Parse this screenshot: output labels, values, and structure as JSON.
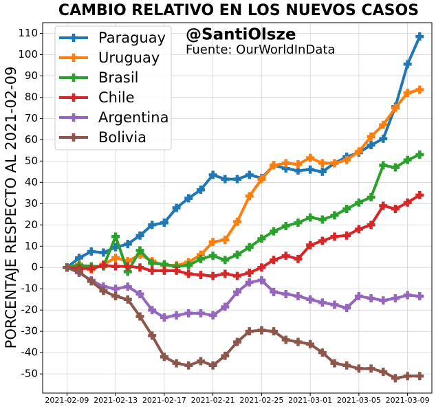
{
  "chart_data": {
    "type": "line",
    "title": "CAMBIO RELATIVO EN LOS NUEVOS CASOS",
    "annotations": [
      "@SantiOlsze",
      "Fuente: OurWorldInData"
    ],
    "ylabel": "PORCENTAJE RESPECTO AL 2021-02-09",
    "x": [
      "2021-02-09",
      "2021-02-10",
      "2021-02-11",
      "2021-02-12",
      "2021-02-13",
      "2021-02-14",
      "2021-02-15",
      "2021-02-16",
      "2021-02-17",
      "2021-02-18",
      "2021-02-19",
      "2021-02-20",
      "2021-02-21",
      "2021-02-22",
      "2021-02-23",
      "2021-02-24",
      "2021-02-25",
      "2021-02-26",
      "2021-02-27",
      "2021-02-28",
      "2021-03-01",
      "2021-03-02",
      "2021-03-03",
      "2021-03-04",
      "2021-03-05",
      "2021-03-06",
      "2021-03-07",
      "2021-03-08",
      "2021-03-09",
      "2021-03-10"
    ],
    "series": [
      {
        "name": "Paraguay",
        "color": "#1f77b4",
        "values": [
          0,
          4.5,
          7.5,
          7,
          9.5,
          11,
          15,
          20,
          21,
          28,
          32.5,
          36.5,
          43.5,
          41.5,
          41.5,
          43.5,
          42,
          48,
          46.5,
          45.5,
          46,
          45,
          49,
          52,
          54,
          57.5,
          60.5,
          75.5,
          95.5,
          108.5
        ]
      },
      {
        "name": "Uruguay",
        "color": "#ff7f0e",
        "values": [
          0,
          1.5,
          -1,
          1.5,
          4.5,
          3,
          6,
          3,
          1,
          1,
          2.5,
          6,
          12,
          13,
          21.5,
          33.5,
          41.5,
          48,
          49,
          48.5,
          51.5,
          49,
          49,
          50.5,
          54.5,
          61.5,
          67,
          75,
          82,
          83.5
        ]
      },
      {
        "name": "Brasil",
        "color": "#2ca02c",
        "values": [
          0,
          1,
          0.5,
          0.5,
          14.5,
          -2,
          8,
          2,
          1.5,
          0.5,
          1,
          4,
          5.5,
          3.5,
          6,
          9.5,
          13.5,
          17,
          19.5,
          21,
          23.5,
          22.5,
          24.5,
          27.5,
          30.5,
          33,
          48,
          47,
          50.5,
          53
        ]
      },
      {
        "name": "Chile",
        "color": "#d62728",
        "values": [
          0,
          -0.5,
          -0.5,
          1,
          0.5,
          0.5,
          0,
          -1.5,
          -1.5,
          -1.5,
          -3,
          -3.5,
          -4,
          -3,
          -4,
          -2.5,
          0,
          3.5,
          5.5,
          4,
          10.5,
          12.5,
          14.5,
          15,
          18,
          20,
          29,
          27.5,
          30.5,
          34
        ]
      },
      {
        "name": "Argentina",
        "color": "#9467bd",
        "values": [
          0,
          -2.5,
          -6,
          -9,
          -10,
          -9,
          -12.5,
          -20,
          -23.5,
          -22.5,
          -21.5,
          -21.5,
          -22.5,
          -18.5,
          -11.5,
          -7,
          -6,
          -11.5,
          -12.5,
          -13.5,
          -15,
          -16.5,
          -17.5,
          -19,
          -13.5,
          -14.5,
          -15.5,
          -14.5,
          -13,
          -13.5
        ]
      },
      {
        "name": "Bolivia",
        "color": "#8c564b",
        "values": [
          0,
          -2,
          -6.5,
          -11,
          -13.5,
          -15,
          -23,
          -32,
          -42,
          -45,
          -46,
          -44,
          -46,
          -41.5,
          -35,
          -30,
          -29.5,
          -30,
          -34,
          -35,
          -36,
          -40,
          -45,
          -46,
          -47.5,
          -47.5,
          -49,
          -52,
          -51,
          -51
        ]
      }
    ],
    "xlim": [
      "2021-02-07",
      "2021-03-11"
    ],
    "xticks": [
      "2021-02-09",
      "2021-02-13",
      "2021-02-17",
      "2021-02-21",
      "2021-02-25",
      "2021-03-01",
      "2021-03-05",
      "2021-03-09"
    ],
    "ylim": [
      -59,
      115
    ],
    "yticks": [
      -50,
      -40,
      -30,
      -20,
      -10,
      0,
      10,
      20,
      30,
      40,
      50,
      60,
      70,
      80,
      90,
      100,
      110
    ],
    "grid": true,
    "legend": "upper left"
  }
}
